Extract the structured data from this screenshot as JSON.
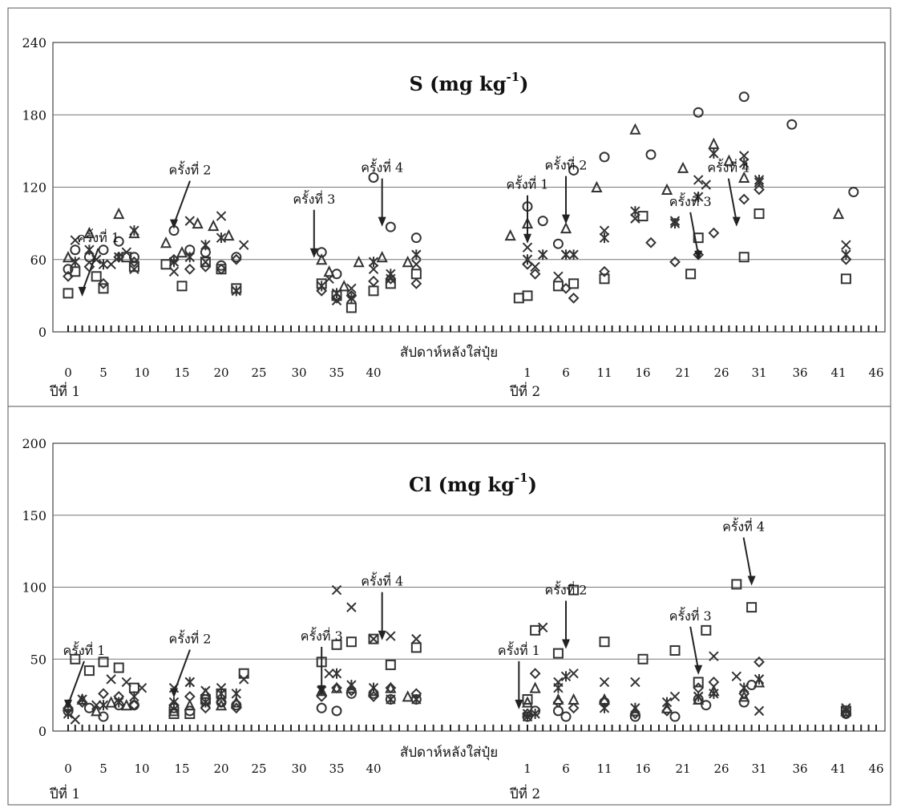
{
  "x_axis": {
    "label": "สัปดาห์หลังใส่ปุ๋ย",
    "tick_labels": [
      "0",
      "5",
      "10",
      "15",
      "20",
      "25",
      "30",
      "35",
      "40",
      "1",
      "6",
      "11",
      "16",
      "21",
      "26",
      "31",
      "36",
      "41",
      "46"
    ],
    "year_labels": [
      "ปีที่ 1",
      "ปีที่ 2"
    ]
  },
  "chart_data": [
    {
      "type": "scatter",
      "title": "S (mg kg",
      "title_superscript": "-1",
      "title_close": ")",
      "xlabel": "สัปดาห์หลังใส่ปุ๋ย",
      "ylim": [
        0,
        240
      ],
      "yticks": [
        "0",
        "60",
        "120",
        "180",
        "240"
      ],
      "grid": "horizontal",
      "x_is_week_index": true,
      "series": [
        {
          "marker": "circle",
          "x": [
            0,
            1,
            3,
            5,
            7,
            9,
            14,
            16,
            18,
            20,
            22,
            33,
            35,
            40,
            42,
            45,
            58,
            60,
            62,
            64,
            68,
            74,
            80,
            86,
            92,
            100
          ],
          "y": [
            52,
            68,
            62,
            68,
            75,
            62,
            84,
            68,
            66,
            55,
            62,
            66,
            48,
            128,
            87,
            78,
            104,
            92,
            73,
            134,
            145,
            147,
            182,
            195,
            172,
            116
          ]
        },
        {
          "marker": "triangle",
          "x": [
            0,
            3,
            7,
            9,
            13,
            15,
            17,
            19,
            21,
            33,
            34,
            36,
            38,
            41,
            44,
            56,
            58,
            63,
            67,
            72,
            76,
            78,
            82,
            84,
            86,
            98
          ],
          "y": [
            62,
            82,
            98,
            82,
            74,
            66,
            90,
            88,
            80,
            60,
            50,
            38,
            58,
            62,
            58,
            80,
            90,
            86,
            120,
            168,
            118,
            136,
            156,
            142,
            128,
            98
          ]
        },
        {
          "marker": "square",
          "x": [
            0,
            1,
            4,
            5,
            8,
            9,
            13,
            15,
            18,
            20,
            22,
            33,
            35,
            37,
            40,
            42,
            45,
            57,
            58,
            62,
            64,
            68,
            73,
            79,
            80,
            86,
            88,
            99
          ],
          "y": [
            32,
            50,
            46,
            36,
            62,
            54,
            56,
            38,
            58,
            52,
            36,
            40,
            30,
            20,
            34,
            40,
            48,
            28,
            30,
            38,
            40,
            44,
            96,
            48,
            78,
            62,
            98,
            44
          ]
        },
        {
          "marker": "diamond",
          "x": [
            0,
            3,
            5,
            7,
            9,
            14,
            16,
            18,
            20,
            22,
            33,
            35,
            37,
            40,
            42,
            45,
            58,
            59,
            63,
            64,
            68,
            74,
            77,
            80,
            82,
            86,
            88,
            99
          ],
          "y": [
            46,
            54,
            40,
            62,
            58,
            60,
            52,
            54,
            52,
            60,
            34,
            28,
            30,
            42,
            44,
            40,
            56,
            48,
            36,
            28,
            50,
            74,
            58,
            64,
            82,
            110,
            118,
            60
          ]
        },
        {
          "marker": "x",
          "x": [
            1,
            4,
            6,
            8,
            9,
            14,
            16,
            18,
            20,
            23,
            34,
            35,
            37,
            40,
            42,
            45,
            58,
            59,
            62,
            63,
            68,
            72,
            77,
            80,
            81,
            86,
            88,
            99
          ],
          "y": [
            76,
            60,
            56,
            66,
            52,
            50,
            92,
            58,
            96,
            72,
            44,
            26,
            36,
            52,
            44,
            56,
            70,
            54,
            46,
            64,
            84,
            94,
            92,
            126,
            122,
            146,
            124,
            72
          ]
        },
        {
          "marker": "asterisk",
          "x": [
            1,
            3,
            5,
            7,
            9,
            14,
            16,
            18,
            20,
            22,
            33,
            35,
            37,
            40,
            42,
            45,
            58,
            60,
            63,
            64,
            68,
            72,
            77,
            80,
            82,
            86,
            88,
            99
          ],
          "y": [
            58,
            68,
            56,
            62,
            84,
            58,
            62,
            72,
            78,
            34,
            38,
            32,
            28,
            58,
            48,
            64,
            60,
            64,
            64,
            64,
            78,
            100,
            90,
            112,
            148,
            140,
            126,
            64
          ]
        }
      ],
      "annotations": [
        {
          "text": "ครั้งที่ 1",
          "x": 2,
          "y": 28
        },
        {
          "text": "ครั้งที่ 2",
          "x": 14,
          "y": 84
        },
        {
          "text": "ครั้งที่ 3",
          "x": 32,
          "y": 60
        },
        {
          "text": "ครั้งที่ 4",
          "x": 41,
          "y": 86
        },
        {
          "text": "ครั้งที่ 1",
          "x": 58,
          "y": 72
        },
        {
          "text": "ครั้งที่ 2",
          "x": 63,
          "y": 88
        },
        {
          "text": "ครั้งที่ 3",
          "x": 80,
          "y": 58
        },
        {
          "text": "ครั้งที่ 4",
          "x": 85,
          "y": 86
        }
      ]
    },
    {
      "type": "scatter",
      "title": "Cl (mg kg",
      "title_superscript": "-1",
      "title_close": ")",
      "xlabel": "สัปดาห์หลังใส่ปุ๋ย",
      "ylim": [
        0,
        200
      ],
      "yticks": [
        "0",
        "50",
        "100",
        "150",
        "200"
      ],
      "grid": "horizontal",
      "x_is_week_index": true,
      "series": [
        {
          "marker": "circle",
          "x": [
            0,
            3,
            5,
            7,
            9,
            14,
            16,
            18,
            20,
            22,
            33,
            35,
            37,
            40,
            42,
            45,
            58,
            59,
            62,
            63,
            68,
            72,
            77,
            80,
            81,
            86,
            87,
            99
          ],
          "y": [
            14,
            16,
            10,
            18,
            18,
            16,
            14,
            22,
            20,
            18,
            16,
            14,
            26,
            26,
            22,
            22,
            10,
            14,
            14,
            10,
            20,
            10,
            10,
            22,
            18,
            20,
            32,
            12
          ]
        },
        {
          "marker": "triangle",
          "x": [
            0,
            2,
            4,
            6,
            8,
            14,
            16,
            18,
            20,
            22,
            33,
            35,
            37,
            40,
            42,
            44,
            58,
            59,
            62,
            64,
            68,
            72,
            76,
            80,
            82,
            86,
            88,
            99
          ],
          "y": [
            18,
            22,
            14,
            20,
            18,
            14,
            18,
            26,
            18,
            20,
            28,
            30,
            30,
            28,
            30,
            24,
            20,
            30,
            22,
            22,
            22,
            14,
            16,
            22,
            28,
            24,
            34,
            14
          ]
        },
        {
          "marker": "square",
          "x": [
            1,
            3,
            5,
            7,
            9,
            14,
            16,
            18,
            20,
            23,
            33,
            35,
            37,
            40,
            42,
            45,
            58,
            59,
            62,
            64,
            68,
            73,
            77,
            80,
            81,
            85,
            87,
            99
          ],
          "y": [
            50,
            42,
            48,
            44,
            30,
            12,
            12,
            22,
            26,
            40,
            48,
            60,
            62,
            64,
            46,
            58,
            22,
            70,
            54,
            98,
            62,
            50,
            56,
            34,
            70,
            102,
            86,
            14
          ]
        },
        {
          "marker": "diamond",
          "x": [
            0,
            2,
            5,
            7,
            9,
            14,
            16,
            18,
            20,
            22,
            33,
            35,
            37,
            40,
            42,
            45,
            58,
            59,
            62,
            64,
            68,
            72,
            76,
            80,
            82,
            86,
            88,
            99
          ],
          "y": [
            16,
            20,
            26,
            24,
            18,
            18,
            24,
            16,
            20,
            16,
            24,
            30,
            28,
            24,
            30,
            26,
            12,
            40,
            20,
            16,
            20,
            12,
            14,
            30,
            34,
            26,
            48,
            12
          ]
        },
        {
          "marker": "x",
          "x": [
            1,
            4,
            6,
            8,
            10,
            14,
            16,
            18,
            20,
            23,
            34,
            35,
            37,
            40,
            42,
            45,
            58,
            60,
            62,
            64,
            68,
            72,
            77,
            80,
            82,
            85,
            88,
            99
          ],
          "y": [
            8,
            18,
            36,
            34,
            30,
            30,
            34,
            28,
            30,
            36,
            40,
            98,
            86,
            64,
            66,
            64,
            12,
            72,
            34,
            40,
            34,
            34,
            24,
            24,
            52,
            38,
            14,
            16
          ]
        },
        {
          "marker": "asterisk",
          "x": [
            0,
            2,
            5,
            7,
            9,
            14,
            16,
            18,
            20,
            22,
            33,
            35,
            37,
            40,
            42,
            45,
            58,
            59,
            62,
            63,
            68,
            72,
            76,
            80,
            82,
            86,
            88,
            99
          ],
          "y": [
            12,
            22,
            18,
            20,
            24,
            20,
            34,
            20,
            26,
            26,
            28,
            40,
            32,
            30,
            22,
            22,
            10,
            12,
            30,
            38,
            16,
            16,
            20,
            24,
            26,
            30,
            36,
            14
          ]
        }
      ],
      "annotations": [
        {
          "text": "ครั้งที่ 1",
          "x": 0,
          "y": 14
        },
        {
          "text": "ครั้งที่ 2",
          "x": 14,
          "y": 22
        },
        {
          "text": "ครั้งที่ 3",
          "x": 33,
          "y": 24
        },
        {
          "text": "ครั้งที่ 4",
          "x": 41,
          "y": 62
        },
        {
          "text": "ครั้งที่ 1",
          "x": 57,
          "y": 14
        },
        {
          "text": "ครั้งที่ 2",
          "x": 63,
          "y": 56
        },
        {
          "text": "ครั้งที่ 3",
          "x": 80,
          "y": 38
        },
        {
          "text": "ครั้งที่ 4",
          "x": 87,
          "y": 100
        }
      ]
    }
  ]
}
